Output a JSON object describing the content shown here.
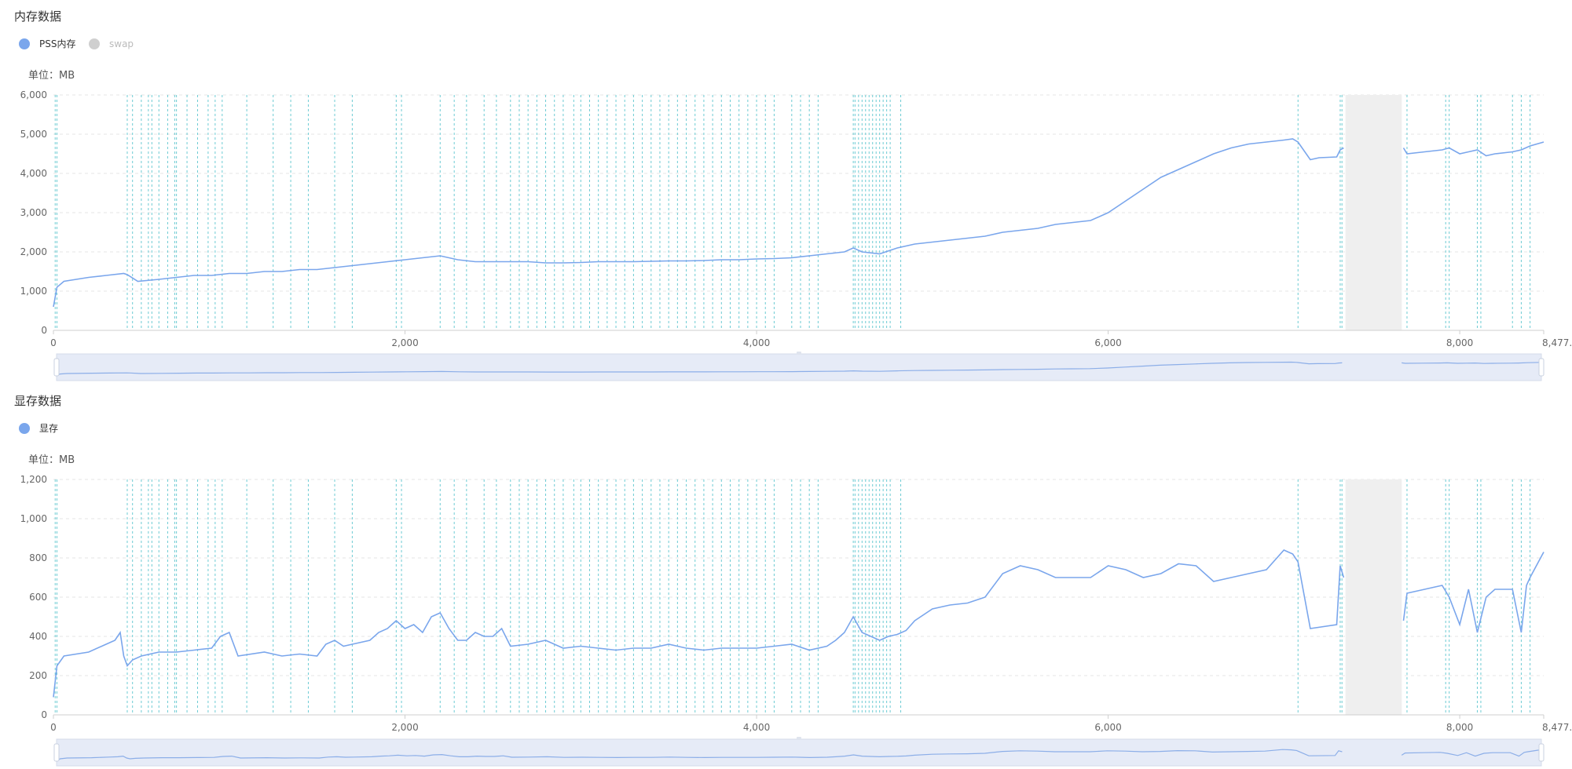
{
  "charts": [
    {
      "title": "内存数据",
      "legend": [
        {
          "label": "PSS内存",
          "color": "#7aa6ec",
          "active": true
        },
        {
          "label": "swap",
          "color": "#cfcfcf",
          "active": false
        }
      ],
      "unit": "单位：MB",
      "y_ticks": [
        "0",
        "1,000",
        "2,000",
        "3,000",
        "4,000",
        "5,000",
        "6,000"
      ],
      "x_ticks": [
        "0",
        "2,000",
        "4,000",
        "6,000",
        "8,000",
        "8,477.7"
      ]
    },
    {
      "title": "显存数据",
      "legend": [
        {
          "label": "显存",
          "color": "#7aa6ec",
          "active": true
        }
      ],
      "unit": "单位：MB",
      "y_ticks": [
        "0",
        "200",
        "400",
        "600",
        "800",
        "1,000",
        "1,200"
      ],
      "x_ticks": [
        "0",
        "2,000",
        "4,000",
        "6,000",
        "8,000",
        "8,477.7"
      ]
    }
  ],
  "chart_data": [
    {
      "type": "line",
      "title": "内存数据",
      "xlim": [
        0,
        8477.7
      ],
      "ylim": [
        0,
        6000
      ],
      "xlabel": "",
      "ylabel": "单位：MB",
      "grid": true,
      "legend_position": "top-left",
      "gap_range": [
        7350,
        7670
      ],
      "markers": [
        10,
        20,
        420,
        450,
        500,
        540,
        560,
        600,
        650,
        690,
        700,
        760,
        820,
        880,
        920,
        960,
        1100,
        1250,
        1350,
        1450,
        1600,
        1700,
        1950,
        1980,
        2200,
        2280,
        2350,
        2450,
        2520,
        2600,
        2650,
        2700,
        2750,
        2800,
        2850,
        2900,
        2960,
        3000,
        3050,
        3100,
        3150,
        3200,
        3250,
        3300,
        3350,
        3400,
        3450,
        3500,
        3550,
        3600,
        3650,
        3700,
        3750,
        3800,
        3850,
        3900,
        3950,
        4000,
        4050,
        4100,
        4200,
        4250,
        4300,
        4350,
        4550,
        4560,
        4580,
        4600,
        4620,
        4640,
        4660,
        4680,
        4700,
        4720,
        4740,
        4760,
        4820,
        7080,
        7320,
        7330,
        7700,
        7920,
        7940,
        8100,
        8120,
        8300,
        8350,
        8400
      ],
      "series": [
        {
          "name": "PSS内存",
          "x": [
            0,
            20,
            60,
            200,
            300,
            400,
            420,
            480,
            600,
            700,
            800,
            900,
            1000,
            1100,
            1200,
            1300,
            1400,
            1500,
            1600,
            1700,
            1800,
            1900,
            2000,
            2100,
            2200,
            2300,
            2400,
            2500,
            2600,
            2700,
            2800,
            2900,
            3000,
            3100,
            3200,
            3300,
            3400,
            3500,
            3600,
            3700,
            3800,
            3900,
            4000,
            4100,
            4200,
            4300,
            4400,
            4500,
            4550,
            4600,
            4700,
            4800,
            4900,
            5000,
            5100,
            5200,
            5300,
            5400,
            5500,
            5600,
            5700,
            5800,
            5900,
            6000,
            6100,
            6200,
            6300,
            6400,
            6500,
            6600,
            6700,
            6800,
            6900,
            7000,
            7050,
            7080,
            7150,
            7200,
            7300,
            7320,
            7340,
            7350,
            7670,
            7680,
            7700,
            7800,
            7900,
            7940,
            8000,
            8050,
            8100,
            8150,
            8200,
            8300,
            8350,
            8400,
            8477.7
          ],
          "values": [
            600,
            1100,
            1250,
            1350,
            1400,
            1450,
            1420,
            1250,
            1300,
            1350,
            1400,
            1400,
            1450,
            1450,
            1500,
            1500,
            1550,
            1550,
            1600,
            1650,
            1700,
            1750,
            1800,
            1850,
            1900,
            1800,
            1750,
            1750,
            1750,
            1750,
            1720,
            1720,
            1730,
            1750,
            1750,
            1750,
            1760,
            1770,
            1770,
            1780,
            1800,
            1800,
            1820,
            1830,
            1850,
            1900,
            1950,
            2000,
            2100,
            2000,
            1950,
            2100,
            2200,
            2250,
            2300,
            2350,
            2400,
            2500,
            2550,
            2600,
            2700,
            2750,
            2800,
            3000,
            3300,
            3600,
            3900,
            4100,
            4300,
            4500,
            4650,
            4750,
            4800,
            4850,
            4880,
            4800,
            4350,
            4400,
            4420,
            4600,
            4650,
            null,
            null,
            4650,
            4500,
            4550,
            4600,
            4650,
            4500,
            4550,
            4600,
            4450,
            4500,
            4550,
            4600,
            4700,
            4800
          ]
        }
      ]
    },
    {
      "type": "line",
      "title": "显存数据",
      "xlim": [
        0,
        8477.7
      ],
      "ylim": [
        0,
        1200
      ],
      "xlabel": "",
      "ylabel": "单位：MB",
      "grid": true,
      "legend_position": "top-left",
      "gap_range": [
        7350,
        7670
      ],
      "markers": [
        10,
        20,
        420,
        450,
        500,
        540,
        560,
        600,
        650,
        690,
        700,
        760,
        820,
        880,
        920,
        960,
        1100,
        1250,
        1350,
        1450,
        1600,
        1700,
        1950,
        1980,
        2200,
        2280,
        2350,
        2450,
        2520,
        2600,
        2650,
        2700,
        2750,
        2800,
        2850,
        2900,
        2960,
        3000,
        3050,
        3100,
        3150,
        3200,
        3250,
        3300,
        3350,
        3400,
        3450,
        3500,
        3550,
        3600,
        3650,
        3700,
        3750,
        3800,
        3850,
        3900,
        3950,
        4000,
        4050,
        4100,
        4200,
        4250,
        4300,
        4350,
        4550,
        4560,
        4580,
        4600,
        4620,
        4640,
        4660,
        4680,
        4700,
        4720,
        4740,
        4760,
        4820,
        7080,
        7320,
        7330,
        7700,
        7920,
        7940,
        8100,
        8120,
        8300,
        8350,
        8400
      ],
      "series": [
        {
          "name": "显存",
          "x": [
            0,
            20,
            60,
            200,
            300,
            350,
            380,
            400,
            420,
            450,
            500,
            600,
            700,
            800,
            900,
            950,
            1000,
            1050,
            1200,
            1300,
            1400,
            1500,
            1550,
            1600,
            1650,
            1700,
            1800,
            1850,
            1900,
            1950,
            2000,
            2050,
            2100,
            2150,
            2200,
            2250,
            2300,
            2350,
            2400,
            2450,
            2500,
            2550,
            2600,
            2700,
            2800,
            2900,
            3000,
            3100,
            3200,
            3300,
            3400,
            3500,
            3600,
            3700,
            3800,
            3900,
            4000,
            4100,
            4200,
            4300,
            4400,
            4450,
            4500,
            4550,
            4600,
            4650,
            4700,
            4750,
            4800,
            4850,
            4900,
            5000,
            5100,
            5200,
            5300,
            5400,
            5500,
            5600,
            5700,
            5800,
            5900,
            6000,
            6100,
            6200,
            6300,
            6400,
            6500,
            6600,
            6700,
            6800,
            6900,
            7000,
            7050,
            7080,
            7150,
            7300,
            7320,
            7340,
            7350,
            7670,
            7680,
            7700,
            7800,
            7900,
            7940,
            8000,
            8050,
            8100,
            8150,
            8200,
            8300,
            8350,
            8380,
            8400,
            8477.7
          ],
          "values": [
            90,
            250,
            300,
            320,
            360,
            380,
            420,
            300,
            250,
            280,
            300,
            320,
            320,
            330,
            340,
            400,
            420,
            300,
            320,
            300,
            310,
            300,
            360,
            380,
            350,
            360,
            380,
            420,
            440,
            480,
            440,
            460,
            420,
            500,
            520,
            440,
            380,
            380,
            420,
            400,
            400,
            440,
            350,
            360,
            380,
            340,
            350,
            340,
            330,
            340,
            340,
            360,
            340,
            330,
            340,
            340,
            340,
            350,
            360,
            330,
            350,
            380,
            420,
            500,
            420,
            400,
            380,
            400,
            410,
            430,
            480,
            540,
            560,
            570,
            600,
            720,
            760,
            740,
            700,
            700,
            700,
            760,
            740,
            700,
            720,
            770,
            760,
            680,
            700,
            720,
            740,
            840,
            820,
            780,
            440,
            460,
            760,
            700,
            null,
            null,
            480,
            620,
            640,
            660,
            600,
            460,
            640,
            420,
            600,
            640,
            640,
            420,
            660,
            700,
            830
          ]
        }
      ]
    }
  ]
}
